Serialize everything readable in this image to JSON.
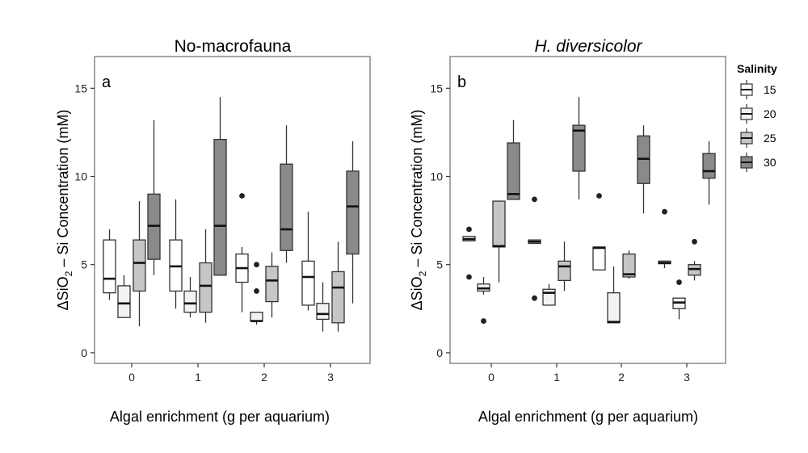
{
  "figure": {
    "legend": {
      "title": "Salinity",
      "entries": [
        {
          "label": "15",
          "fill": "#ffffff"
        },
        {
          "label": "20",
          "fill": "#f2f2f2"
        },
        {
          "label": "25",
          "fill": "#c6c6c6"
        },
        {
          "label": "30",
          "fill": "#8a8a8a"
        }
      ]
    },
    "colors": {
      "frame": "#888888",
      "box_stroke": "#333333",
      "tick": "#333333"
    }
  },
  "chart_data": [
    {
      "type": "boxplot",
      "title": "No-macrofauna",
      "title_italic": false,
      "panel_label": "a",
      "xlabel": "Algal enrichment (g per aquarium)",
      "ylabel_parts": [
        "ΔSiO",
        "2",
        " – Si Concentration (mM)"
      ],
      "categories": [
        "0",
        "1",
        "2",
        "3"
      ],
      "ylim": [
        -0.6,
        16.8
      ],
      "yticks": [
        0,
        5,
        10,
        15
      ],
      "ytick_labels": [
        "0",
        "5",
        "10",
        "15"
      ],
      "series": [
        {
          "name": "15",
          "boxes": [
            {
              "whisker_low": 3.0,
              "q1": 3.4,
              "median": 4.2,
              "q3": 6.4,
              "whisker_high": 7.0,
              "outliers": []
            },
            {
              "whisker_low": 2.5,
              "q1": 3.5,
              "median": 4.9,
              "q3": 6.4,
              "whisker_high": 8.7,
              "outliers": []
            },
            {
              "whisker_low": 2.3,
              "q1": 4.0,
              "median": 4.8,
              "q3": 5.6,
              "whisker_high": 6.0,
              "outliers": [
                8.9
              ]
            },
            {
              "whisker_low": 2.4,
              "q1": 2.7,
              "median": 4.3,
              "q3": 5.2,
              "whisker_high": 8.0,
              "outliers": []
            }
          ]
        },
        {
          "name": "20",
          "boxes": [
            {
              "whisker_low": 2.0,
              "q1": 2.0,
              "median": 2.8,
              "q3": 3.8,
              "whisker_high": 4.4,
              "outliers": []
            },
            {
              "whisker_low": 2.0,
              "q1": 2.3,
              "median": 2.8,
              "q3": 3.5,
              "whisker_high": 4.3,
              "outliers": []
            },
            {
              "whisker_low": 1.6,
              "q1": 1.8,
              "median": 1.8,
              "q3": 2.3,
              "whisker_high": 2.3,
              "outliers": [
                5.0,
                3.5
              ]
            },
            {
              "whisker_low": 1.2,
              "q1": 1.9,
              "median": 2.2,
              "q3": 2.8,
              "whisker_high": 4.0,
              "outliers": []
            }
          ]
        },
        {
          "name": "25",
          "boxes": [
            {
              "whisker_low": 1.5,
              "q1": 3.5,
              "median": 5.1,
              "q3": 6.4,
              "whisker_high": 8.6,
              "outliers": []
            },
            {
              "whisker_low": 1.7,
              "q1": 2.3,
              "median": 3.8,
              "q3": 5.1,
              "whisker_high": 7.0,
              "outliers": []
            },
            {
              "whisker_low": 2.0,
              "q1": 2.9,
              "median": 4.1,
              "q3": 4.9,
              "whisker_high": 5.7,
              "outliers": []
            },
            {
              "whisker_low": 1.2,
              "q1": 1.7,
              "median": 3.7,
              "q3": 4.6,
              "whisker_high": 6.3,
              "outliers": []
            }
          ]
        },
        {
          "name": "30",
          "boxes": [
            {
              "whisker_low": 4.4,
              "q1": 5.3,
              "median": 7.2,
              "q3": 9.0,
              "whisker_high": 13.2,
              "outliers": []
            },
            {
              "whisker_low": 4.4,
              "q1": 4.4,
              "median": 7.2,
              "q3": 12.1,
              "whisker_high": 14.5,
              "outliers": []
            },
            {
              "whisker_low": 5.1,
              "q1": 5.8,
              "median": 7.0,
              "q3": 10.7,
              "whisker_high": 12.9,
              "outliers": []
            },
            {
              "whisker_low": 2.8,
              "q1": 5.6,
              "median": 8.3,
              "q3": 10.3,
              "whisker_high": 12.0,
              "outliers": []
            }
          ]
        }
      ]
    },
    {
      "type": "boxplot",
      "title": "H. diversicolor",
      "title_italic": true,
      "panel_label": "b",
      "xlabel": "Algal enrichment (g per aquarium)",
      "ylabel_parts": [
        "ΔSiO",
        "2",
        " – Si Concentration (mM)"
      ],
      "categories": [
        "0",
        "1",
        "2",
        "3"
      ],
      "ylim": [
        -0.6,
        16.8
      ],
      "yticks": [
        0,
        5,
        10,
        15
      ],
      "ytick_labels": [
        "0",
        "5",
        "10",
        "15"
      ],
      "series": [
        {
          "name": "15",
          "boxes": [
            {
              "whisker_low": 6.35,
              "q1": 6.35,
              "median": 6.45,
              "q3": 6.6,
              "whisker_high": 6.6,
              "outliers": [
                7.0,
                4.3
              ]
            },
            {
              "whisker_low": 6.2,
              "q1": 6.2,
              "median": 6.3,
              "q3": 6.4,
              "whisker_high": 6.4,
              "outliers": [
                8.7,
                3.1
              ]
            },
            {
              "whisker_low": 4.7,
              "q1": 4.7,
              "median": 5.95,
              "q3": 6.0,
              "whisker_high": 6.0,
              "outliers": [
                8.9
              ]
            },
            {
              "whisker_low": 4.8,
              "q1": 5.05,
              "median": 5.1,
              "q3": 5.2,
              "whisker_high": 5.2,
              "outliers": [
                8.0
              ]
            }
          ]
        },
        {
          "name": "20",
          "boxes": [
            {
              "whisker_low": 3.3,
              "q1": 3.5,
              "median": 3.65,
              "q3": 3.9,
              "whisker_high": 4.3,
              "outliers": [
                1.8
              ]
            },
            {
              "whisker_low": 2.7,
              "q1": 2.7,
              "median": 3.4,
              "q3": 3.6,
              "whisker_high": 3.9,
              "outliers": []
            },
            {
              "whisker_low": 1.7,
              "q1": 1.7,
              "median": 1.75,
              "q3": 3.4,
              "whisker_high": 4.9,
              "outliers": []
            },
            {
              "whisker_low": 1.9,
              "q1": 2.5,
              "median": 2.85,
              "q3": 3.1,
              "whisker_high": 3.1,
              "outliers": [
                4.0
              ]
            }
          ]
        },
        {
          "name": "25",
          "boxes": [
            {
              "whisker_low": 4.0,
              "q1": 6.0,
              "median": 6.05,
              "q3": 8.6,
              "whisker_high": 8.6,
              "outliers": []
            },
            {
              "whisker_low": 3.5,
              "q1": 4.1,
              "median": 4.9,
              "q3": 5.2,
              "whisker_high": 6.3,
              "outliers": []
            },
            {
              "whisker_low": 4.2,
              "q1": 4.3,
              "median": 4.45,
              "q3": 5.6,
              "whisker_high": 5.8,
              "outliers": []
            },
            {
              "whisker_low": 4.1,
              "q1": 4.4,
              "median": 4.75,
              "q3": 5.0,
              "whisker_high": 5.2,
              "outliers": [
                6.3
              ]
            }
          ]
        },
        {
          "name": "30",
          "boxes": [
            {
              "whisker_low": 8.7,
              "q1": 8.7,
              "median": 9.0,
              "q3": 11.9,
              "whisker_high": 13.2,
              "outliers": []
            },
            {
              "whisker_low": 8.7,
              "q1": 10.3,
              "median": 12.6,
              "q3": 12.9,
              "whisker_high": 14.5,
              "outliers": []
            },
            {
              "whisker_low": 7.9,
              "q1": 9.6,
              "median": 11.0,
              "q3": 12.3,
              "whisker_high": 12.9,
              "outliers": []
            },
            {
              "whisker_low": 8.4,
              "q1": 9.9,
              "median": 10.3,
              "q3": 11.3,
              "whisker_high": 12.0,
              "outliers": []
            }
          ]
        }
      ]
    }
  ]
}
